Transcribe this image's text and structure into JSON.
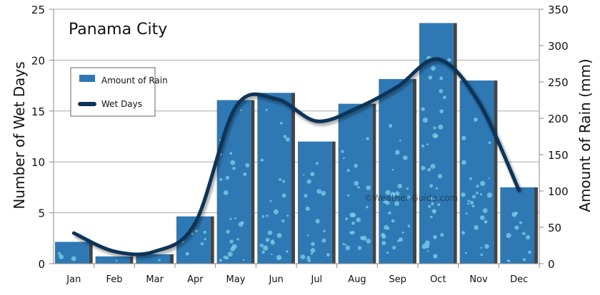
{
  "chart_data": {
    "type": "bar+line",
    "title": "Panama City",
    "categories": [
      "Jan",
      "Feb",
      "Mar",
      "Apr",
      "May",
      "Jun",
      "Jul",
      "Aug",
      "Sep",
      "Oct",
      "Nov",
      "Dec"
    ],
    "series": [
      {
        "name": "Amount of Rain",
        "type": "bar",
        "axis": "right",
        "values": [
          30,
          10,
          13,
          65,
          225,
          235,
          168,
          220,
          254,
          331,
          252,
          105
        ]
      },
      {
        "name": "Wet Days",
        "type": "line",
        "axis": "left",
        "values": [
          3,
          1.2,
          1.2,
          4,
          15.4,
          16.2,
          14,
          15.3,
          17.4,
          20.1,
          15.9,
          7.2
        ]
      }
    ],
    "ylabel_left": "Number of Wet Days",
    "ylabel_right": "Amount of Rain (mm)",
    "ylim_left": [
      0,
      25
    ],
    "ylim_right": [
      0,
      350
    ],
    "yticks_left": [
      "0",
      "5",
      "10",
      "15",
      "20",
      "25"
    ],
    "yticks_right": [
      "0",
      "50",
      "100",
      "150",
      "200",
      "250",
      "300",
      "350"
    ],
    "grid": true,
    "legend_position": "top-left",
    "colors": {
      "bar": "#2e78b4",
      "line": "#0d3458"
    },
    "watermark": "©Weather-Guide.com"
  }
}
